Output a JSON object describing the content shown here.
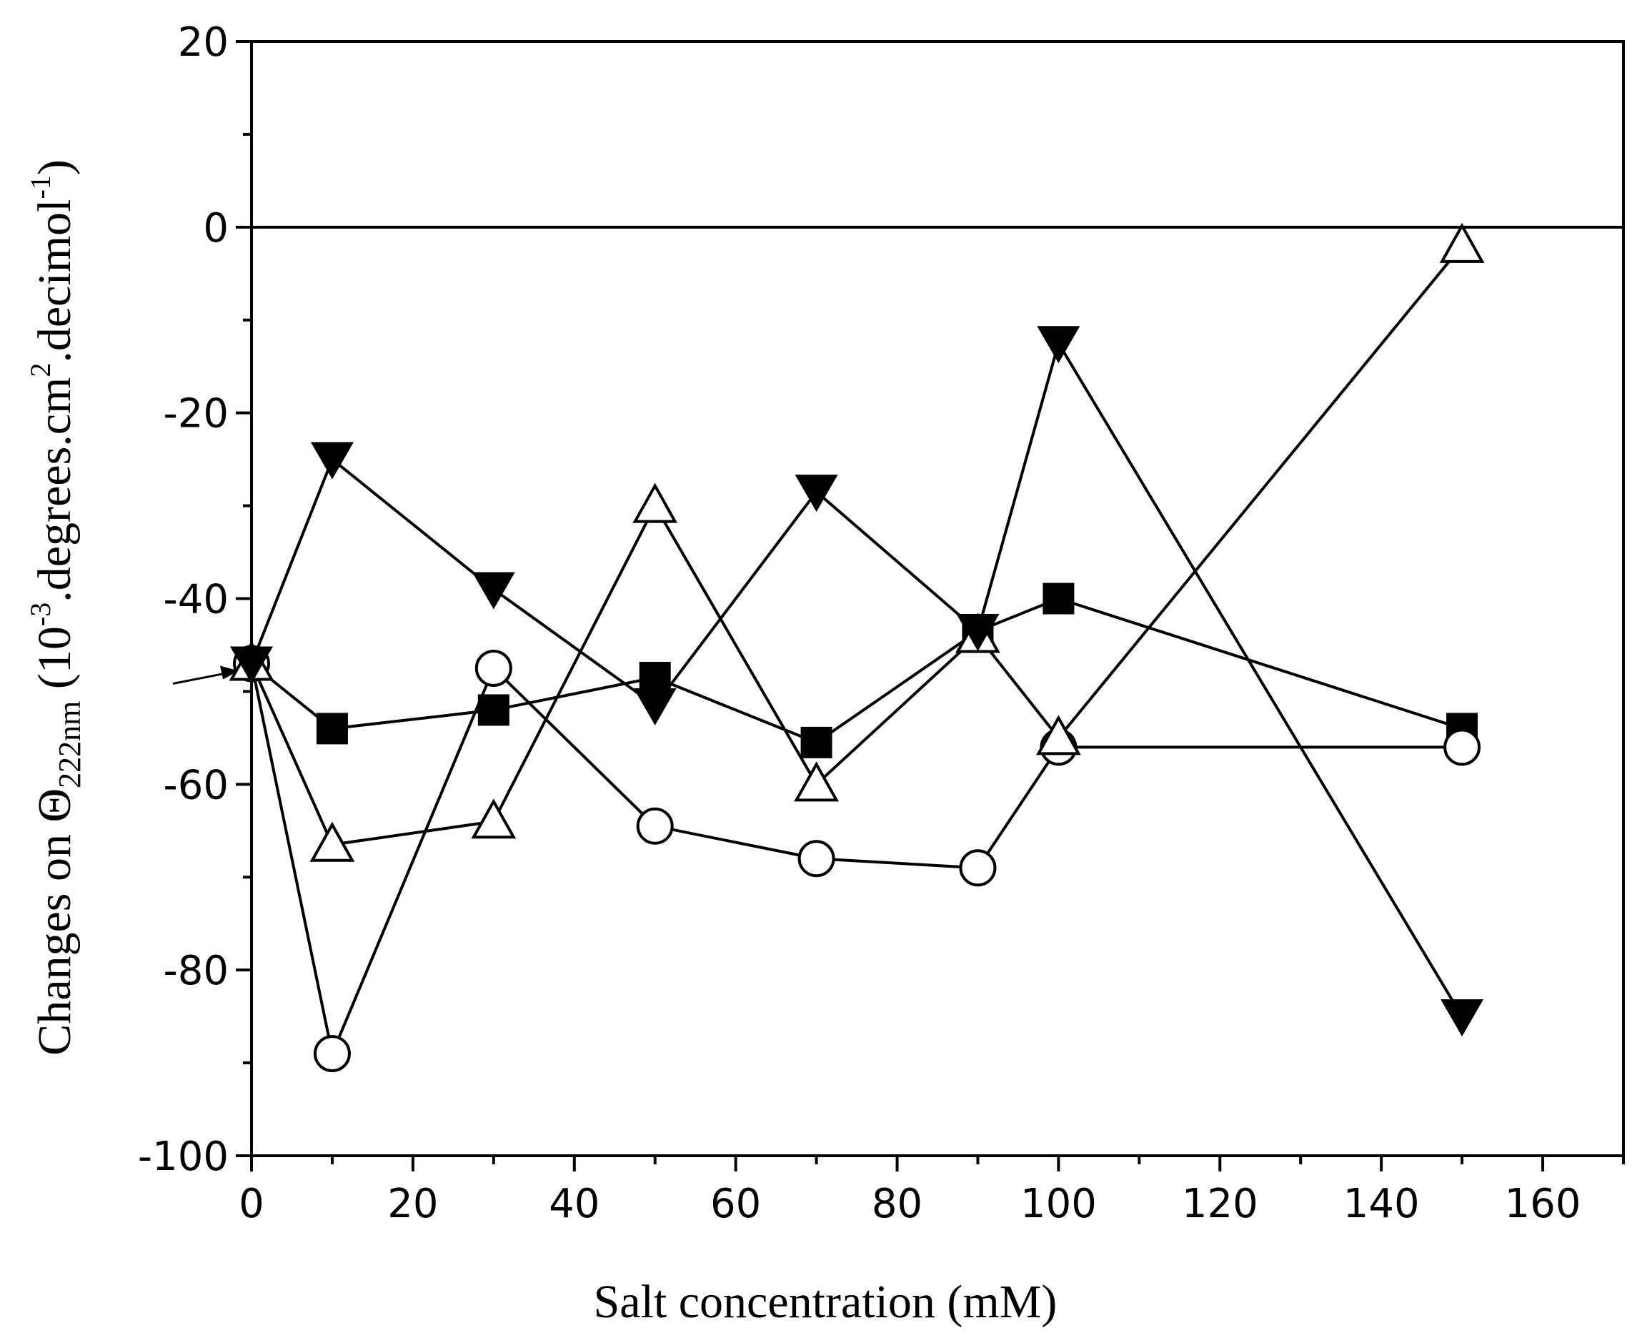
{
  "chart_data": {
    "type": "line",
    "title": "",
    "xlabel": "Salt concentration (mM)",
    "ylabel": {
      "prefix": "Changes on ",
      "theta": "Θ",
      "sub": "222nm",
      "open": " (10",
      "exp1": "-3",
      "mid": ".degrees.cm",
      "exp2": "2",
      "tail": ".decimol",
      "exp3": "-1",
      "close": ")"
    },
    "xlim": [
      0,
      170
    ],
    "ylim": [
      -100,
      20
    ],
    "xticks": [
      0,
      20,
      40,
      60,
      80,
      100,
      120,
      140,
      160
    ],
    "yticks": [
      20,
      0,
      -20,
      -40,
      -60,
      -80,
      -100
    ],
    "zero_line": 0,
    "arrow_marker_at": {
      "x": 0,
      "y": -47
    },
    "series": [
      {
        "name": "filled squares",
        "marker": "square-filled",
        "x": [
          0,
          10,
          30,
          50,
          70,
          90,
          100,
          150
        ],
        "y": [
          -47,
          -54,
          -52,
          -48.5,
          -55.5,
          -43.5,
          -40,
          -54
        ]
      },
      {
        "name": "open circles",
        "marker": "circle-open",
        "x": [
          0,
          10,
          30,
          50,
          70,
          90,
          100,
          150
        ],
        "y": [
          -47,
          -89,
          -47.5,
          -64.5,
          -68,
          -69,
          -56,
          -56
        ]
      },
      {
        "name": "open triangles",
        "marker": "triangle-up-open",
        "x": [
          0,
          10,
          30,
          50,
          70,
          90,
          100,
          150
        ],
        "y": [
          -47,
          -66.5,
          -64,
          -30,
          -60,
          -44,
          -55,
          -2
        ]
      },
      {
        "name": "filled down triangles",
        "marker": "triangle-down-filled",
        "x": [
          0,
          10,
          30,
          50,
          70,
          90,
          100,
          150
        ],
        "y": [
          -47,
          -25,
          -39,
          -51.5,
          -28.5,
          -43.5,
          -12.5,
          -85
        ]
      }
    ]
  }
}
